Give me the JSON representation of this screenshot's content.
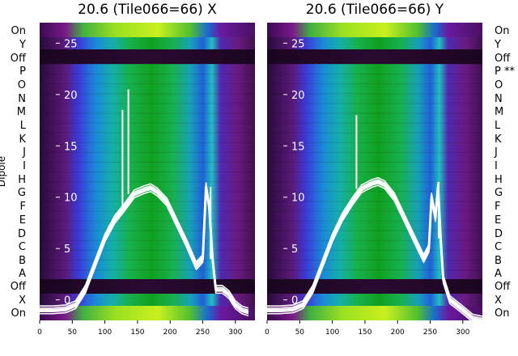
{
  "chart_data": [
    {
      "type": "heatmap",
      "title": "20.6 (Tile066=66) X",
      "ylabel": "Dipole",
      "x_ticks": [
        0,
        50,
        100,
        150,
        200,
        250,
        300
      ],
      "xlim": [
        0,
        330
      ],
      "y_ticks": [
        0,
        5,
        10,
        15,
        20,
        25
      ],
      "ylim": [
        -2,
        27
      ],
      "row_labels_left": [
        "On",
        "X",
        "Off",
        "A",
        "B",
        "C",
        "D",
        "E",
        "F",
        "G",
        "H",
        "I",
        "J",
        "K",
        "L",
        "M",
        "N",
        "O",
        "P",
        "Off",
        "Y",
        "On"
      ],
      "line_profile": {
        "x": [
          0,
          20,
          40,
          55,
          70,
          85,
          100,
          115,
          130,
          145,
          160,
          170,
          180,
          195,
          210,
          225,
          240,
          250,
          255,
          260,
          265,
          270,
          280,
          290,
          300,
          310,
          320
        ],
        "y": [
          -1,
          -1,
          -0.9,
          -0.5,
          1,
          3.5,
          6,
          7.8,
          9,
          10.3,
          10.7,
          10.9,
          10.5,
          9.5,
          7.5,
          5.5,
          3.3,
          4,
          11,
          9,
          4,
          1,
          1,
          0.5,
          -0.5,
          -1,
          -1.2
        ]
      },
      "spikes": [
        {
          "x": 127,
          "y": 18.5
        },
        {
          "x": 136,
          "y": 20.5
        },
        {
          "x": 262,
          "y": 11
        }
      ]
    },
    {
      "type": "heatmap",
      "title": "20.6 (Tile066=66) Y",
      "ylabel": "",
      "x_ticks": [
        0,
        50,
        100,
        150,
        200,
        250,
        300
      ],
      "xlim": [
        0,
        330
      ],
      "y_ticks": [
        0,
        5,
        10,
        15,
        20,
        25
      ],
      "ylim": [
        -2,
        27
      ],
      "row_labels_right": [
        "On",
        "X",
        "Off",
        "A",
        "B",
        "C",
        "D",
        "E",
        "F",
        "G",
        "H",
        "I",
        "J",
        "K",
        "L",
        "M",
        "N",
        "O",
        "P **",
        "Off",
        "Y",
        "On"
      ],
      "line_profile": {
        "x": [
          0,
          20,
          40,
          55,
          70,
          85,
          100,
          115,
          130,
          145,
          160,
          170,
          180,
          195,
          210,
          225,
          240,
          248,
          252,
          258,
          262,
          266,
          270,
          280,
          290,
          300,
          315,
          330
        ],
        "y": [
          -1,
          -1,
          -0.9,
          -0.5,
          1,
          3.5,
          6,
          8,
          9.5,
          10.8,
          11.3,
          11.5,
          11.2,
          10,
          8,
          6,
          4,
          5,
          10,
          8,
          11,
          6,
          2,
          0,
          -0.5,
          -1,
          -1.8,
          -2
        ]
      },
      "spikes": [
        {
          "x": 137,
          "y": 18
        },
        {
          "x": 263,
          "y": 11.5
        }
      ]
    }
  ]
}
